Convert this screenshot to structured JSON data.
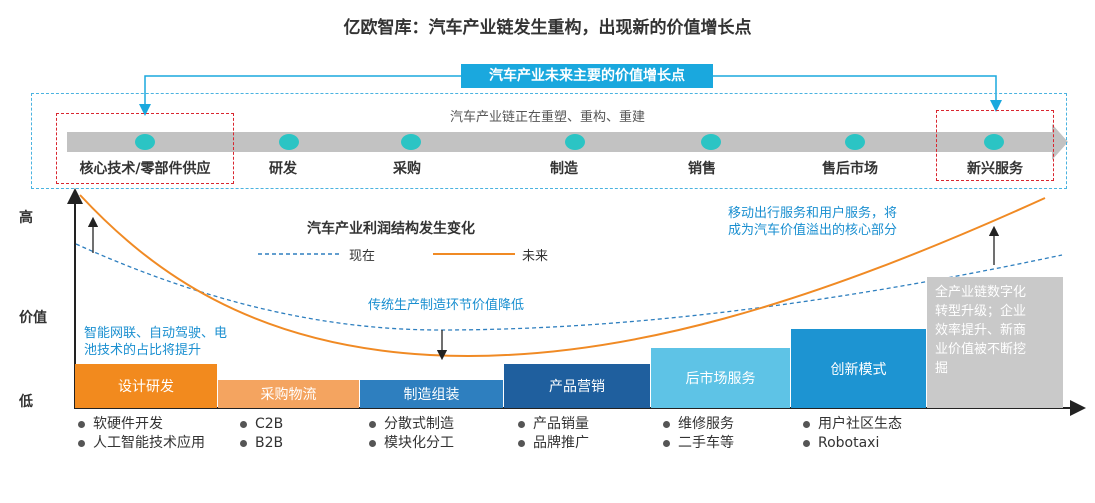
{
  "title": "亿欧智库：汽车产业链发生重构，出现新的价值增长点",
  "top_label": "汽车产业未来主要的价值增长点",
  "subtitle": "汽车产业链正在重塑、重构、重建",
  "stages": [
    {
      "label": "核心技术/零部件供应"
    },
    {
      "label": "研发"
    },
    {
      "label": "采购"
    },
    {
      "label": "制造"
    },
    {
      "label": "销售"
    },
    {
      "label": "售后市场"
    },
    {
      "label": "新兴服务"
    }
  ],
  "y_axis": {
    "high": "高",
    "mid": "价值",
    "low": "低"
  },
  "legend": {
    "title": "汽车产业利润结构发生变化",
    "now": "现在",
    "future": "未来"
  },
  "notes": {
    "right_top": [
      "移动出行服务和用户服务，将",
      "成为汽车价值溢出的核心部分"
    ],
    "middle": "传统生产制造环节价值降低",
    "left": [
      "智能网联、自动驾驶、电",
      "池技术的占比将提升"
    ]
  },
  "blocks": [
    {
      "label": "设计研发",
      "color": "#f28a1e"
    },
    {
      "label": "采购物流",
      "color": "#f4a460"
    },
    {
      "label": "制造组装",
      "color": "#2e7fbf"
    },
    {
      "label": "产品营销",
      "color": "#1f5f9e"
    },
    {
      "label": "后市场服务",
      "color": "#5ec3e6"
    },
    {
      "label": "创新模式",
      "color": "#1d94d2"
    }
  ],
  "gray_block": {
    "lines": [
      "全产业链数字化",
      "转型升级；企业",
      "效率提升、新商",
      "业价值被不断挖",
      "掘"
    ],
    "color": "#c9c9c9"
  },
  "bullets": [
    [
      "软硬件开发",
      "人工智能技术应用"
    ],
    [
      "C2B",
      "B2B"
    ],
    [
      "分散式制造",
      "模块化分工"
    ],
    [
      "产品销量",
      "品牌推广"
    ],
    [
      "维修服务",
      "二手车等"
    ],
    [
      "用户社区生态",
      "Robotaxi"
    ]
  ],
  "colors": {
    "accent": "#1aa8de",
    "dot": "#2bc4c4",
    "future_line": "#f08a24",
    "now_line": "#2e7fbf",
    "red_box": "#d9262f"
  }
}
